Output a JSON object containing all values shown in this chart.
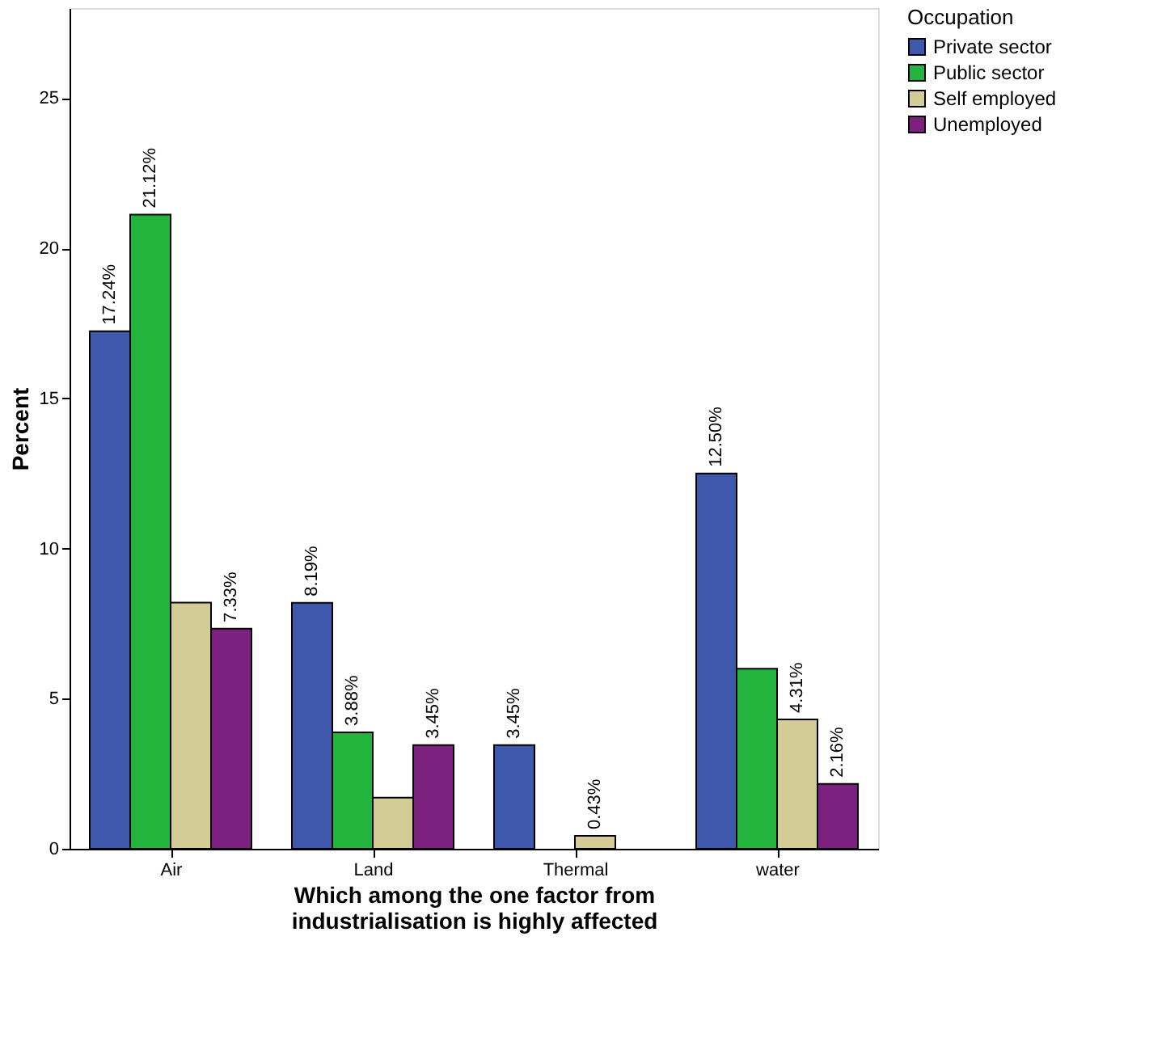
{
  "chart_data": {
    "type": "bar",
    "xlabel": "Which among the one factor from industrialisation is highly affected",
    "ylabel": "Percent",
    "legend_title": "Occupation",
    "categories": [
      "Air",
      "Land",
      "Thermal",
      "water"
    ],
    "series": [
      {
        "name": "Private sector",
        "color": "#3e58ac",
        "values": [
          17.24,
          8.19,
          3.45,
          12.5
        ],
        "value_labels": [
          "17.24%",
          "8.19%",
          "3.45%",
          "12.50%"
        ]
      },
      {
        "name": "Public sector",
        "color": "#23b43e",
        "values": [
          21.12,
          3.88,
          null,
          6.0
        ],
        "value_labels": [
          "21.12%",
          "3.88%",
          null,
          null
        ]
      },
      {
        "name": "Self employed",
        "color": "#d4cc96",
        "values": [
          8.2,
          1.7,
          0.43,
          4.31
        ],
        "value_labels": [
          null,
          null,
          "0.43%",
          "4.31%"
        ]
      },
      {
        "name": "Unemployed",
        "color": "#7c2180",
        "values": [
          7.33,
          3.45,
          null,
          2.16
        ],
        "value_labels": [
          "7.33%",
          "3.45%",
          null,
          "2.16%"
        ]
      }
    ],
    "ylim": [
      0,
      28
    ],
    "yticks": [
      0,
      5,
      10,
      15,
      20,
      25
    ],
    "grid": false,
    "legend": "top right"
  }
}
